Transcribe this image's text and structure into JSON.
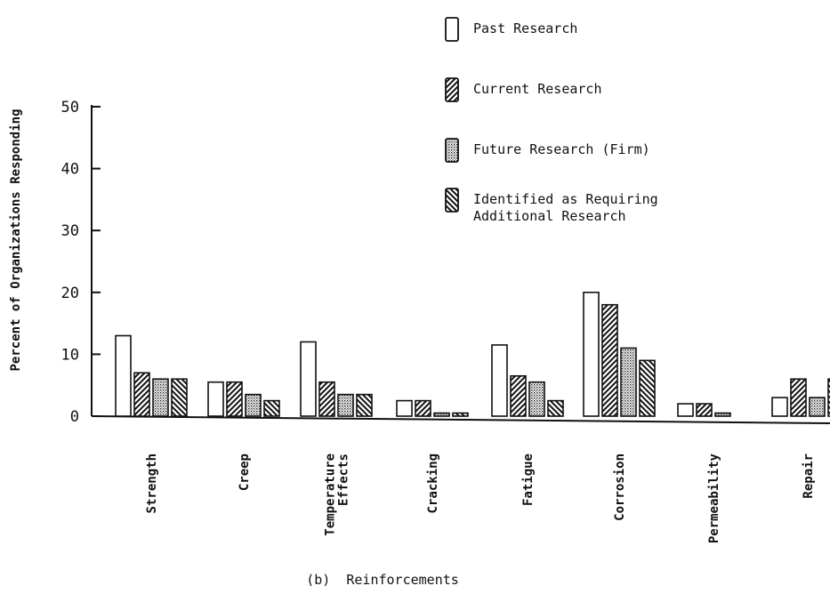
{
  "chart_data": {
    "type": "bar",
    "title": "(b)  Reinforcements",
    "ylabel": "Percent of Organizations Responding",
    "xlabel": "",
    "ylim": [
      0,
      50
    ],
    "yticks": [
      0,
      10,
      20,
      30,
      40,
      50
    ],
    "categories": [
      [
        "Strength"
      ],
      [
        "Creep"
      ],
      [
        "Temperature",
        "Effects"
      ],
      [
        "Cracking"
      ],
      [
        "Fatigue"
      ],
      [
        "Corrosion"
      ],
      [
        "Permeability"
      ],
      [
        "Repair"
      ]
    ],
    "series": [
      {
        "name": "Past Research",
        "pattern": "plain",
        "values": [
          13,
          5.5,
          12,
          2.5,
          11.5,
          20,
          2,
          3
        ]
      },
      {
        "name": "Current Research",
        "pattern": "hatch-forward",
        "values": [
          7,
          5.5,
          5.5,
          2.5,
          6.5,
          18,
          2,
          6
        ]
      },
      {
        "name": "Future Research (Firm)",
        "pattern": "dots",
        "values": [
          6,
          3.5,
          3.5,
          0.5,
          5.5,
          11,
          0.5,
          3
        ]
      },
      {
        "name": "Identified as Requiring Additional Research",
        "legend_lines": [
          "Identified as Requiring",
          "Additional Research"
        ],
        "pattern": "hatch-back",
        "values": [
          6,
          2.5,
          3.5,
          0.5,
          2.5,
          9,
          0,
          6
        ]
      }
    ],
    "legend_position": "top-right",
    "grid": false
  }
}
